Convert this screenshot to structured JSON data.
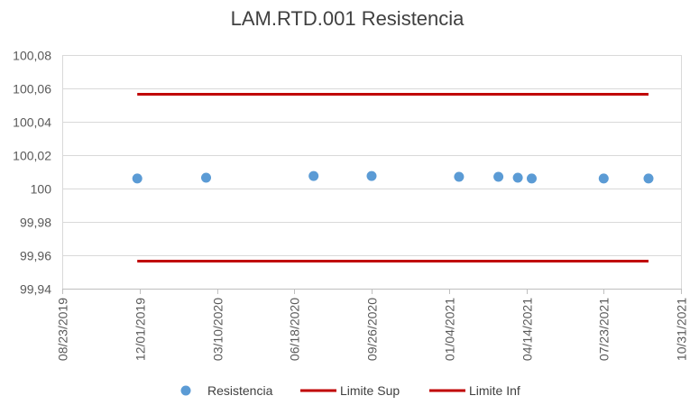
{
  "chart_data": {
    "type": "scatter",
    "title": "LAM.RTD.001 Resistencia",
    "xlabel": "",
    "ylabel": "",
    "x_axis": {
      "type": "date",
      "min": "2019-08-23",
      "max": "2021-10-31",
      "ticks": [
        "2019-08-23",
        "2019-12-01",
        "2020-03-10",
        "2020-06-18",
        "2020-09-26",
        "2021-01-04",
        "2021-04-14",
        "2021-07-23",
        "2021-10-31"
      ],
      "tick_labels": [
        "08/23/2019",
        "12/01/2019",
        "03/10/2020",
        "06/18/2020",
        "09/26/2020",
        "01/04/2021",
        "04/14/2021",
        "07/23/2021",
        "10/31/2021"
      ]
    },
    "y_axis": {
      "min": 99.94,
      "max": 100.08,
      "ticks": [
        99.94,
        99.96,
        99.98,
        100,
        100.02,
        100.04,
        100.06,
        100.08
      ],
      "tick_labels": [
        "99,94",
        "99,96",
        "99,98",
        "100",
        "100,02",
        "100,04",
        "100,06",
        "100,08"
      ]
    },
    "grid": "horizontal",
    "legend_position": "bottom",
    "series": [
      {
        "name": "Resistencia",
        "kind": "scatter",
        "color": "#5B9BD5",
        "points": [
          {
            "x": "2019-11-28",
            "y": 100.006
          },
          {
            "x": "2020-02-25",
            "y": 100.0065
          },
          {
            "x": "2020-07-13",
            "y": 100.0075
          },
          {
            "x": "2020-09-26",
            "y": 100.0075
          },
          {
            "x": "2021-01-17",
            "y": 100.007
          },
          {
            "x": "2021-03-09",
            "y": 100.007
          },
          {
            "x": "2021-04-03",
            "y": 100.0065
          },
          {
            "x": "2021-04-21",
            "y": 100.006
          },
          {
            "x": "2021-07-23",
            "y": 100.006
          },
          {
            "x": "2021-09-19",
            "y": 100.006
          }
        ]
      },
      {
        "name": "Limite Sup",
        "kind": "line",
        "color": "#C00000",
        "points": [
          {
            "x": "2019-11-28",
            "y": 100.0565
          },
          {
            "x": "2021-09-19",
            "y": 100.0565
          }
        ]
      },
      {
        "name": "Limite Inf",
        "kind": "line",
        "color": "#C00000",
        "points": [
          {
            "x": "2019-11-28",
            "y": 99.9565
          },
          {
            "x": "2021-09-19",
            "y": 99.9565
          }
        ]
      }
    ]
  }
}
